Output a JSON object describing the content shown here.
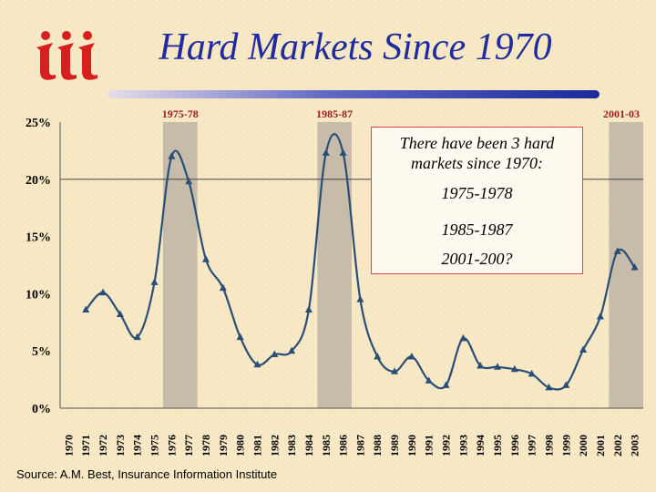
{
  "slide": {
    "title": "Hard Markets Since 1970",
    "source": "Source:  A.M. Best, Insurance Information Institute",
    "callout": {
      "heading": "There have been 3 hard markets since 1970:",
      "items": [
        "1975-1978",
        "1985-1987",
        "2001-200?"
      ]
    },
    "colors": {
      "title": "#1f2ba0",
      "line": "#2a4e78",
      "shade": "#c6bca9",
      "band_label": "#9b1b1b",
      "callout_border": "#e0404f",
      "background": "#f7e9c6"
    }
  },
  "chart_data": {
    "type": "line",
    "title": "",
    "xlabel": "",
    "ylabel": "",
    "categories": [
      "1970",
      "1971",
      "1972",
      "1973",
      "1974",
      "1975",
      "1976",
      "1977",
      "1978",
      "1979",
      "1980",
      "1981",
      "1982",
      "1983",
      "1984",
      "1985",
      "1986",
      "1987",
      "1988",
      "1989",
      "1990",
      "1991",
      "1992",
      "1993",
      "1994",
      "1995",
      "1996",
      "1997",
      "1998",
      "1999",
      "2000",
      "2001",
      "2002",
      "2003"
    ],
    "series": [
      {
        "values": [
          null,
          8.6,
          10.1,
          8.2,
          6.2,
          11.0,
          22.0,
          19.8,
          13.0,
          10.5,
          6.2,
          3.8,
          4.7,
          5.0,
          8.6,
          22.3,
          22.3,
          9.5,
          4.5,
          3.2,
          4.5,
          2.4,
          2.0,
          6.1,
          3.7,
          3.6,
          3.4,
          3.0,
          1.8,
          2.0,
          5.1,
          8.0,
          13.7,
          12.3
        ]
      }
    ],
    "ylim": [
      0,
      25
    ],
    "yticks": [
      "0%",
      "5%",
      "10%",
      "15%",
      "20%",
      "25%"
    ],
    "reference_line": 20,
    "shaded_bands": [
      {
        "label": "1975-78",
        "from": "1976",
        "to": "1977"
      },
      {
        "label": "1985-87",
        "from": "1985",
        "to": "1986"
      },
      {
        "label": "2001-03",
        "from": "2002",
        "to": "2003"
      }
    ],
    "grid": false,
    "legend": "none"
  }
}
